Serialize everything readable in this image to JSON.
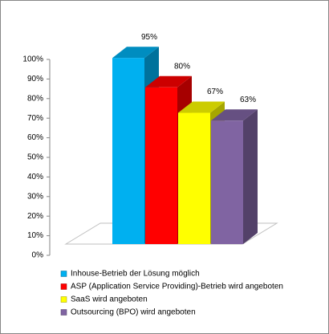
{
  "chart_data": {
    "type": "bar",
    "series": [
      {
        "name": "Inhouse-Betrieb der Lösung möglich",
        "color": "#00b0f0",
        "values": [
          95
        ],
        "value_labels": [
          "95%"
        ]
      },
      {
        "name": "ASP (Application Service Providing)-Betrieb wird angeboten",
        "color": "#ff0000",
        "values": [
          80
        ],
        "value_labels": [
          "80%"
        ]
      },
      {
        "name": "SaaS wird angeboten",
        "color": "#ffff00",
        "values": [
          67
        ],
        "value_labels": [
          "67%"
        ]
      },
      {
        "name": "Outsourcing (BPO) wird angeboten",
        "color": "#8064a2",
        "values": [
          63
        ],
        "value_labels": [
          "63%"
        ]
      }
    ],
    "ylim": [
      0,
      100
    ],
    "yticks": [
      {
        "value": 0,
        "label": "0%"
      },
      {
        "value": 10,
        "label": "10%"
      },
      {
        "value": 20,
        "label": "20%"
      },
      {
        "value": 30,
        "label": "30%"
      },
      {
        "value": 40,
        "label": "40%"
      },
      {
        "value": 50,
        "label": "50%"
      },
      {
        "value": 60,
        "label": "60%"
      },
      {
        "value": 70,
        "label": "70%"
      },
      {
        "value": 80,
        "label": "80%"
      },
      {
        "value": 90,
        "label": "90%"
      },
      {
        "value": 100,
        "label": "100%"
      }
    ]
  }
}
